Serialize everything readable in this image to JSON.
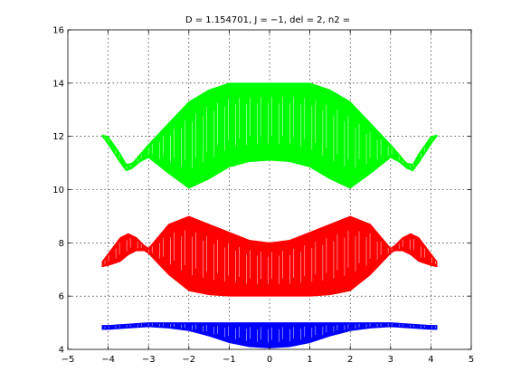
{
  "chart_data": {
    "type": "area",
    "title": "D = 1.154701, J = −1, del = 2, n2 =",
    "xlabel": "",
    "ylabel": "",
    "xlim": [
      -5,
      5
    ],
    "ylim": [
      4,
      16
    ],
    "xticks": [
      -5,
      -4,
      -3,
      -2,
      -1,
      0,
      1,
      2,
      3,
      4,
      5
    ],
    "yticks": [
      4,
      6,
      8,
      10,
      12,
      14,
      16
    ],
    "xtick_labels": [
      "−5",
      "−4",
      "−3",
      "−2",
      "−1",
      "0",
      "1",
      "2",
      "3",
      "4",
      "5"
    ],
    "ytick_labels": [
      "4",
      "6",
      "8",
      "10",
      "12",
      "14",
      "16"
    ],
    "grid": true,
    "legend": "none",
    "series": [
      {
        "color": "#0000ff",
        "x": [
          -4.15,
          -4.0,
          -3.5,
          -3.0,
          -2.5,
          -2.0,
          -1.5,
          -1.0,
          -0.5,
          0.0,
          0.5,
          1.0,
          1.5,
          2.0,
          2.5,
          3.0,
          3.5,
          4.0,
          4.15
        ],
        "upper": [
          4.9,
          4.9,
          4.95,
          5.0,
          5.0,
          5.0,
          5.0,
          5.0,
          5.0,
          5.0,
          5.0,
          5.0,
          5.0,
          5.0,
          5.0,
          5.0,
          4.95,
          4.9,
          4.9
        ],
        "lower": [
          4.75,
          4.75,
          4.8,
          4.85,
          4.8,
          4.7,
          4.5,
          4.25,
          4.1,
          4.05,
          4.1,
          4.25,
          4.5,
          4.7,
          4.8,
          4.85,
          4.8,
          4.75,
          4.75
        ]
      },
      {
        "color": "#ff0000",
        "x": [
          -4.15,
          -4.0,
          -3.7,
          -3.5,
          -3.3,
          -3.1,
          -3.0,
          -2.5,
          -2.0,
          -1.5,
          -1.0,
          -0.5,
          0.0,
          0.5,
          1.0,
          1.5,
          2.0,
          2.5,
          3.0,
          3.1,
          3.3,
          3.5,
          3.7,
          4.0,
          4.15
        ],
        "upper": [
          7.3,
          7.6,
          8.2,
          8.35,
          8.2,
          7.9,
          7.8,
          8.7,
          9.0,
          8.7,
          8.4,
          8.1,
          8.0,
          8.1,
          8.4,
          8.7,
          9.0,
          8.7,
          7.8,
          7.9,
          8.2,
          8.35,
          8.2,
          7.6,
          7.3
        ],
        "lower": [
          7.1,
          7.15,
          7.3,
          7.55,
          7.7,
          7.7,
          7.6,
          6.8,
          6.2,
          6.05,
          6.0,
          6.0,
          6.0,
          6.0,
          6.0,
          6.05,
          6.2,
          6.8,
          7.6,
          7.7,
          7.7,
          7.55,
          7.3,
          7.15,
          7.1
        ]
      },
      {
        "color": "#00ff00",
        "x": [
          -4.15,
          -4.0,
          -3.7,
          -3.55,
          -3.4,
          -3.2,
          -3.0,
          -2.5,
          -2.0,
          -1.5,
          -1.0,
          -0.5,
          0.0,
          0.5,
          1.0,
          1.5,
          2.0,
          2.5,
          3.0,
          3.2,
          3.4,
          3.55,
          3.7,
          4.0,
          4.15
        ],
        "upper": [
          12.05,
          12.0,
          11.35,
          10.95,
          11.0,
          11.35,
          11.7,
          12.5,
          13.3,
          13.75,
          14.0,
          14.0,
          14.0,
          14.0,
          14.0,
          13.75,
          13.3,
          12.5,
          11.7,
          11.35,
          11.0,
          10.95,
          11.35,
          12.0,
          12.05
        ],
        "lower": [
          12.0,
          11.7,
          11.0,
          10.7,
          10.8,
          11.05,
          11.2,
          10.6,
          10.05,
          10.4,
          10.85,
          11.05,
          11.1,
          11.05,
          10.85,
          10.4,
          10.05,
          10.6,
          11.2,
          11.05,
          10.8,
          10.7,
          11.0,
          11.7,
          12.0
        ]
      }
    ]
  }
}
